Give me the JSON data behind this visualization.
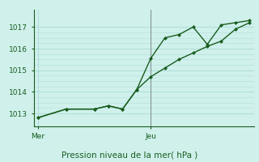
{
  "bg_color": "#cff0eb",
  "grid_color": "#b0ddd8",
  "line_color": "#1a5e20",
  "marker_color": "#1a5e20",
  "xlabel": "Pression niveau de la mer( hPa )",
  "xlabel_color": "#1a5e20",
  "xtick_labels": [
    "Mer",
    "Jeu"
  ],
  "xtick_positions": [
    0,
    8
  ],
  "ytick_values": [
    1013,
    1014,
    1015,
    1016,
    1017
  ],
  "ylim": [
    1012.4,
    1017.8
  ],
  "xlim": [
    -0.3,
    15.3
  ],
  "series1_x": [
    0,
    2,
    4,
    5,
    6,
    7,
    8,
    9,
    10,
    11,
    12,
    13,
    14,
    15
  ],
  "series1_y": [
    1012.8,
    1013.2,
    1013.2,
    1013.35,
    1013.2,
    1014.1,
    1015.55,
    1016.5,
    1016.65,
    1017.0,
    1016.2,
    1017.1,
    1017.2,
    1017.3
  ],
  "series2_x": [
    0,
    2,
    4,
    5,
    6,
    7,
    8,
    9,
    10,
    11,
    12,
    13,
    14,
    15
  ],
  "series2_y": [
    1012.8,
    1013.2,
    1013.2,
    1013.35,
    1013.2,
    1014.1,
    1014.7,
    1015.1,
    1015.5,
    1015.8,
    1016.1,
    1016.35,
    1016.9,
    1017.2
  ],
  "vline_x": 8,
  "vline_color": "#666666",
  "figsize": [
    3.2,
    2.0
  ],
  "dpi": 100
}
